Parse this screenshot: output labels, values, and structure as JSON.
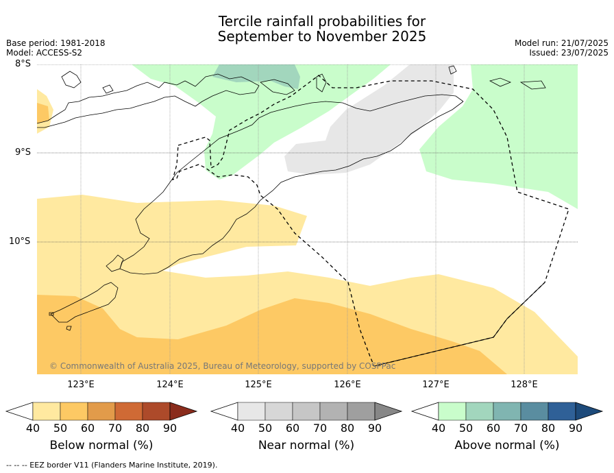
{
  "title_line1": "Tercile rainfall probabilities for",
  "title_line2": "September to November 2025",
  "base_period": "Base period: 1981-2018",
  "model": "Model: ACCESS-S2",
  "model_run": "Model run: 21/07/2025",
  "issued": "Issued: 23/07/2025",
  "lat_labels": [
    "8°S",
    "9°S",
    "10°S"
  ],
  "lon_labels": [
    "123°E",
    "124°E",
    "125°E",
    "126°E",
    "127°E",
    "128°E"
  ],
  "copyright": "© Commonwealth of Australia 2025, Bureau of Meteorology, supported by COSPPac",
  "colorbars": [
    {
      "label": "Below normal (%)",
      "ticks": [
        "40",
        "50",
        "60",
        "70",
        "80",
        "90"
      ],
      "colors": [
        "#ffe9a0",
        "#fdc964",
        "#e29b4a",
        "#cf6a35",
        "#ad4a2a",
        "#8a2c1c"
      ]
    },
    {
      "label": "Near normal (%)",
      "ticks": [
        "40",
        "50",
        "60",
        "70",
        "80",
        "90"
      ],
      "colors": [
        "#e7e7e7",
        "#d7d7d7",
        "#c6c6c6",
        "#b2b2b2",
        "#9f9f9f",
        "#878787"
      ]
    },
    {
      "label": "Above normal (%)",
      "ticks": [
        "40",
        "50",
        "60",
        "70",
        "80",
        "90"
      ],
      "colors": [
        "#c9fdcb",
        "#a2d6bd",
        "#80b5b1",
        "#5a8da0",
        "#2f6097",
        "#1d4a7a"
      ]
    }
  ],
  "footer": "--  --  -- EEZ border V11 (Flanders Marine Institute, 2019)."
}
